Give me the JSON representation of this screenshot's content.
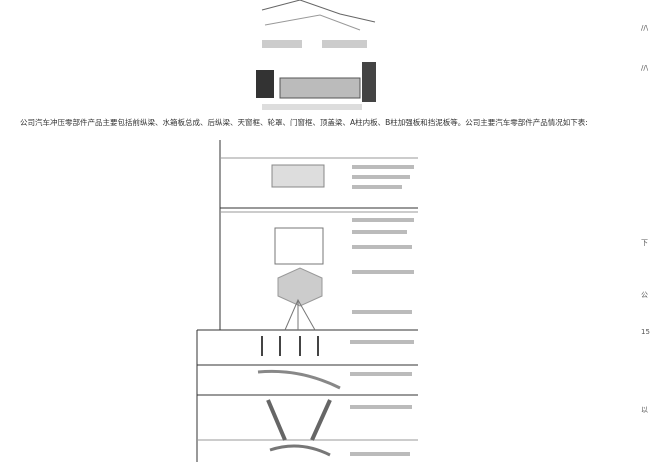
{
  "body": {
    "paragraph": "公司汽车冲压零部件产品主要包括前纵梁、水箱板总成、后纵梁、天窗框、轮罩、门窗框、顶盖梁、A柱内板、B柱加强板和挡泥板等。公司主要汽车零部件产品情况如下表:"
  },
  "margin": [
    "//\\",
    "//\\",
    "下",
    "公",
    "15",
    "以"
  ]
}
